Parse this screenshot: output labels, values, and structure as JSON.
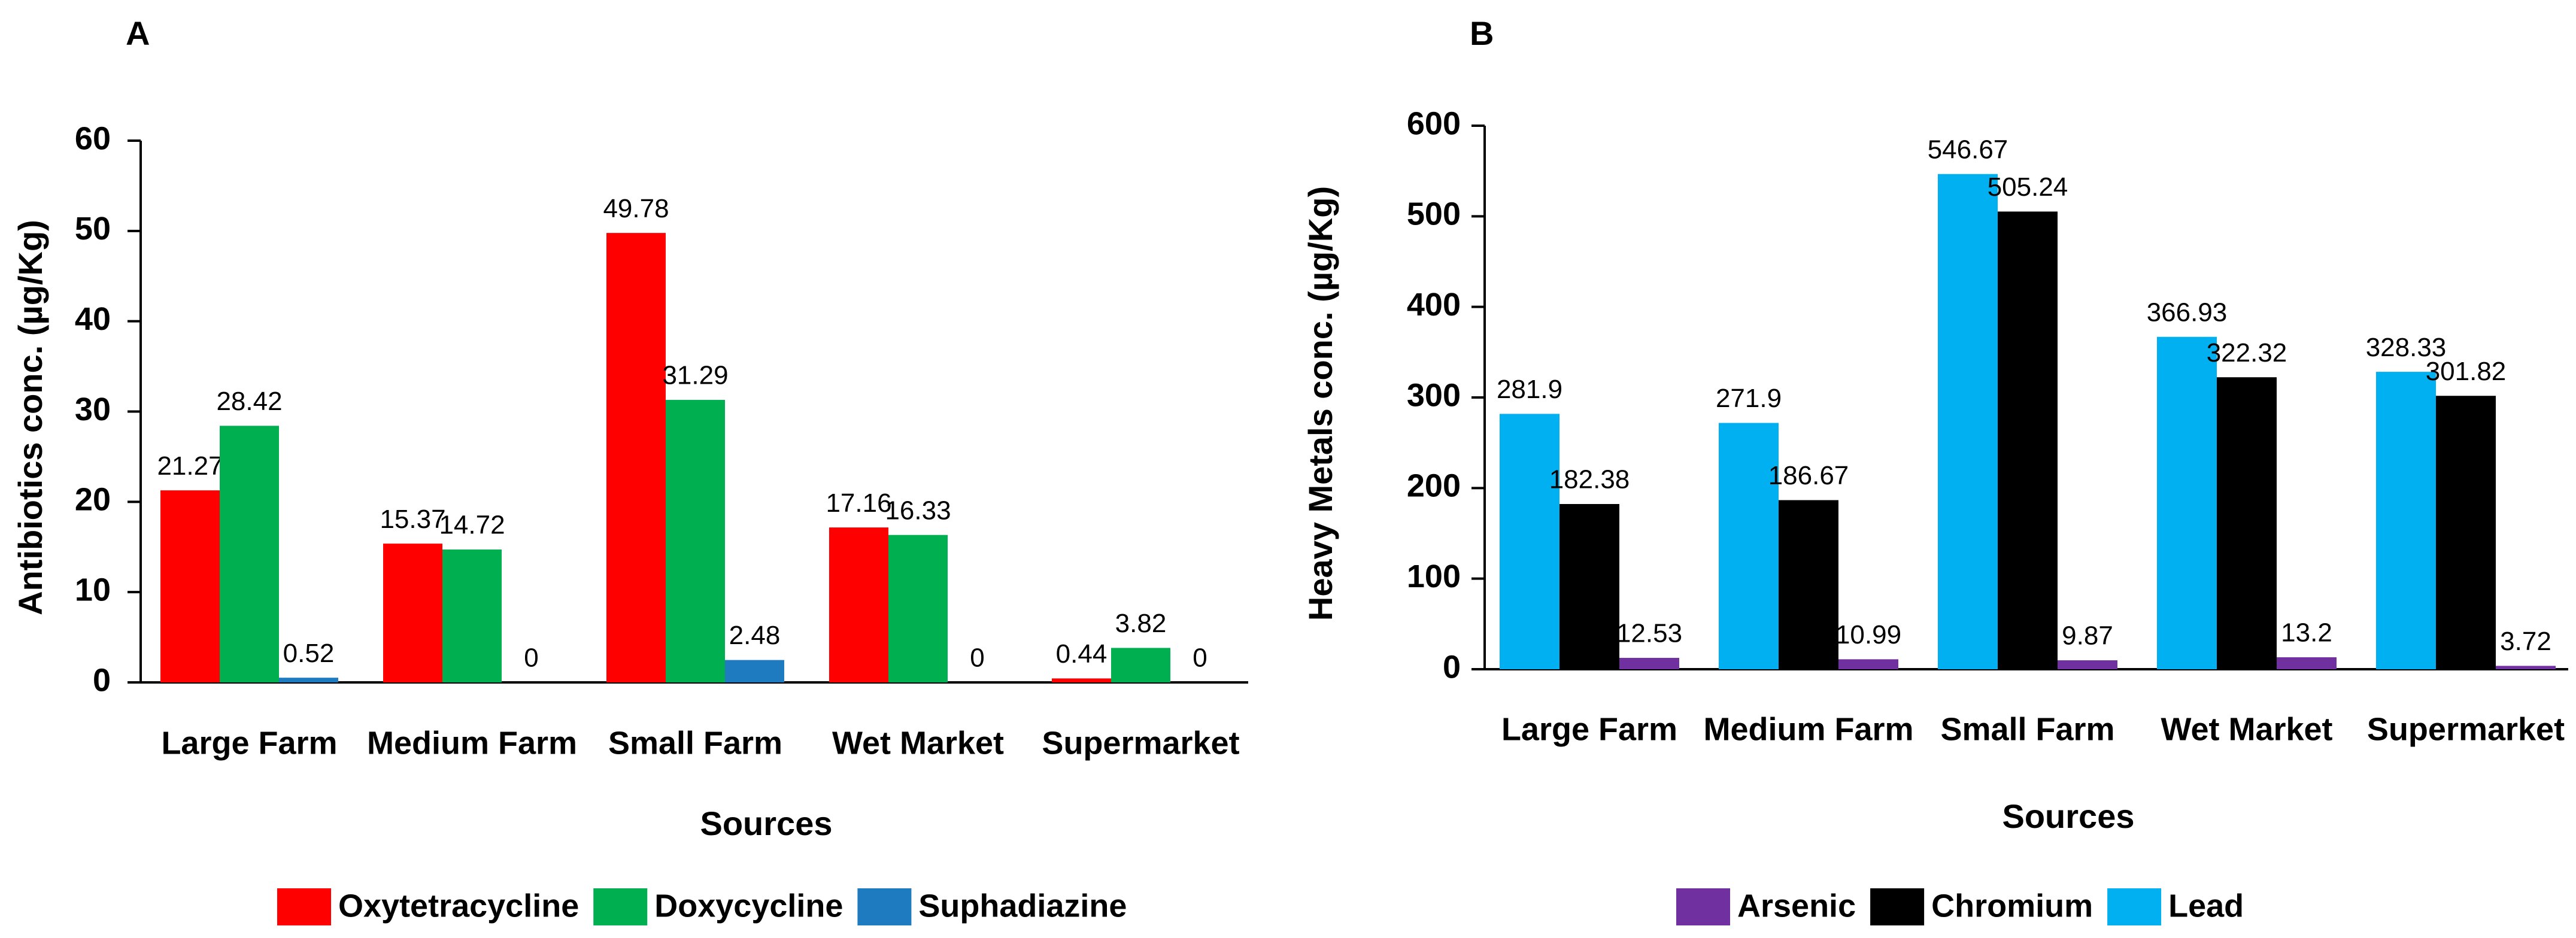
{
  "chart_data": [
    {
      "panel_label": "A",
      "type": "bar",
      "title": "",
      "xlabel": "Sources",
      "ylabel": "Antibiotics conc. (µg/Kg)",
      "ylim": [
        0,
        60
      ],
      "yticks": [
        0,
        10,
        20,
        30,
        40,
        50,
        60
      ],
      "ytick_labels": [
        "0",
        "10",
        "20",
        "30",
        "40",
        "50",
        "60"
      ],
      "grid": false,
      "legend_position": "bottom",
      "categories": [
        "Large Farm",
        "Medium Farm",
        "Small Farm",
        "Wet Market",
        "Supermarket"
      ],
      "series": [
        {
          "name": "Oxytetracycline",
          "color": "#ff0000",
          "values": [
            21.27,
            15.37,
            49.78,
            17.16,
            0.44
          ],
          "labels": [
            "21.27",
            "15.37",
            "49.78",
            "17.16",
            "0.44"
          ]
        },
        {
          "name": "Doxycycline",
          "color": "#00b050",
          "values": [
            28.42,
            14.72,
            31.29,
            16.33,
            3.82
          ],
          "labels": [
            "28.42",
            "14.72",
            "31.29",
            "16.33",
            "3.82"
          ]
        },
        {
          "name": "Suphadiazine",
          "color": "#1f7bbf",
          "values": [
            0.52,
            0,
            2.48,
            0,
            0
          ],
          "labels": [
            "0.52",
            "0",
            "2.48",
            "0",
            "0"
          ]
        }
      ],
      "legend_order": [
        0,
        1,
        2
      ]
    },
    {
      "panel_label": "B",
      "type": "bar",
      "title": "",
      "xlabel": "Sources",
      "ylabel": "Heavy Metals conc. (µg/Kg)",
      "ylim": [
        0,
        600
      ],
      "yticks": [
        0,
        100,
        200,
        300,
        400,
        500,
        600
      ],
      "ytick_labels": [
        "0",
        "100",
        "200",
        "300",
        "400",
        "500",
        "600"
      ],
      "grid": false,
      "legend_position": "bottom",
      "categories": [
        "Large Farm",
        "Medium Farm",
        "Small Farm",
        "Wet Market",
        "Supermarket"
      ],
      "series": [
        {
          "name": "Lead",
          "color": "#00b0f0",
          "values": [
            281.9,
            271.9,
            546.67,
            366.93,
            328.33
          ],
          "labels": [
            "281.9",
            "271.9",
            "546.67",
            "366.93",
            "328.33"
          ]
        },
        {
          "name": "Chromium",
          "color": "#000000",
          "values": [
            182.38,
            186.67,
            505.24,
            322.32,
            301.82
          ],
          "labels": [
            "182.38",
            "186.67",
            "505.24",
            "322.32",
            "301.82"
          ]
        },
        {
          "name": "Arsenic",
          "color": "#7030a0",
          "values": [
            12.53,
            10.99,
            9.87,
            13.2,
            3.72
          ],
          "labels": [
            "12.53",
            "10.99",
            "9.87",
            "13.2",
            "3.72"
          ]
        }
      ],
      "legend_order": [
        2,
        1,
        0
      ]
    }
  ]
}
